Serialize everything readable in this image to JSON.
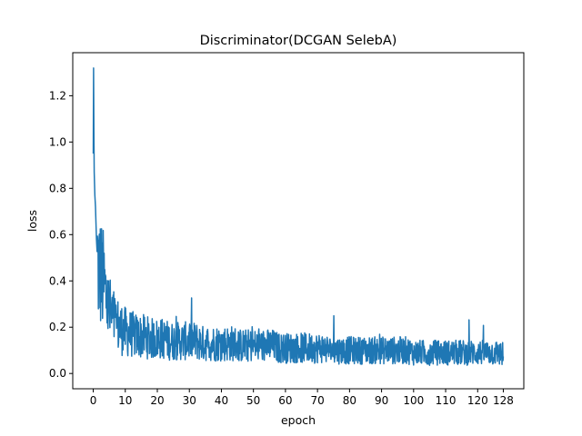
{
  "chart_data": {
    "type": "line",
    "title": "Discriminator(DCGAN SelebA)",
    "xlabel": "epoch",
    "ylabel": "loss",
    "xlim": [
      -6.4,
      134.4
    ],
    "ylim": [
      -0.066,
      1.386
    ],
    "xticks": [
      0,
      10,
      20,
      30,
      40,
      50,
      60,
      70,
      80,
      90,
      100,
      110,
      120,
      128
    ],
    "xtick_labels": [
      "0",
      "10",
      "20",
      "30",
      "40",
      "50",
      "60",
      "70",
      "80",
      "90",
      "100",
      "110",
      "120",
      "128"
    ],
    "yticks": [
      0.0,
      0.2,
      0.4,
      0.6,
      0.8,
      1.0,
      1.2
    ],
    "ytick_labels": [
      "0.0",
      "0.2",
      "0.4",
      "0.6",
      "0.8",
      "1.0",
      "1.2"
    ],
    "grid": false,
    "legend": "none",
    "line_color": "#1f77b4",
    "series": [
      {
        "x": [
          0,
          0.1,
          0.2,
          0.3,
          0.5,
          0.7,
          1.0,
          1.3,
          1.6,
          2.0,
          2.5,
          3.0,
          3.5,
          4.0,
          5.0,
          6.0,
          7.0,
          8.0,
          9.0,
          10.0,
          12.0,
          14.0,
          16.0,
          18.0,
          20.0,
          22.0,
          24.0,
          26.0,
          28.0,
          30.0,
          32.0,
          34.0,
          36.0,
          38.0,
          40.0,
          42.0,
          44.0,
          46.0,
          48.0,
          50.0,
          52.0,
          54.0,
          56.0,
          58.0,
          60.0,
          62.0,
          64.0,
          66.0,
          68.0,
          70.0,
          72.0,
          74.0,
          76.0,
          78.0,
          80.0,
          82.0,
          84.0,
          86.0,
          88.0,
          90.0,
          92.0,
          94.0,
          96.0,
          98.0,
          100.0,
          102.0,
          104.0,
          106.0,
          108.0,
          110.0,
          112.0,
          114.0,
          116.0,
          118.0,
          120.0,
          122.0,
          124.0,
          126.0,
          128.0
        ],
        "y": [
          0.95,
          1.32,
          1.05,
          0.87,
          0.77,
          0.72,
          0.58,
          0.5,
          0.46,
          0.44,
          0.42,
          0.4,
          0.37,
          0.33,
          0.27,
          0.24,
          0.22,
          0.2,
          0.19,
          0.18,
          0.17,
          0.16,
          0.16,
          0.15,
          0.15,
          0.15,
          0.14,
          0.14,
          0.14,
          0.14,
          0.14,
          0.13,
          0.13,
          0.13,
          0.13,
          0.13,
          0.13,
          0.12,
          0.12,
          0.12,
          0.12,
          0.12,
          0.12,
          0.11,
          0.11,
          0.11,
          0.11,
          0.11,
          0.11,
          0.11,
          0.11,
          0.1,
          0.1,
          0.1,
          0.1,
          0.1,
          0.1,
          0.1,
          0.1,
          0.1,
          0.1,
          0.1,
          0.1,
          0.1,
          0.09,
          0.09,
          0.09,
          0.09,
          0.09,
          0.09,
          0.09,
          0.09,
          0.09,
          0.09,
          0.09,
          0.09,
          0.09,
          0.09,
          0.08
        ]
      }
    ]
  }
}
